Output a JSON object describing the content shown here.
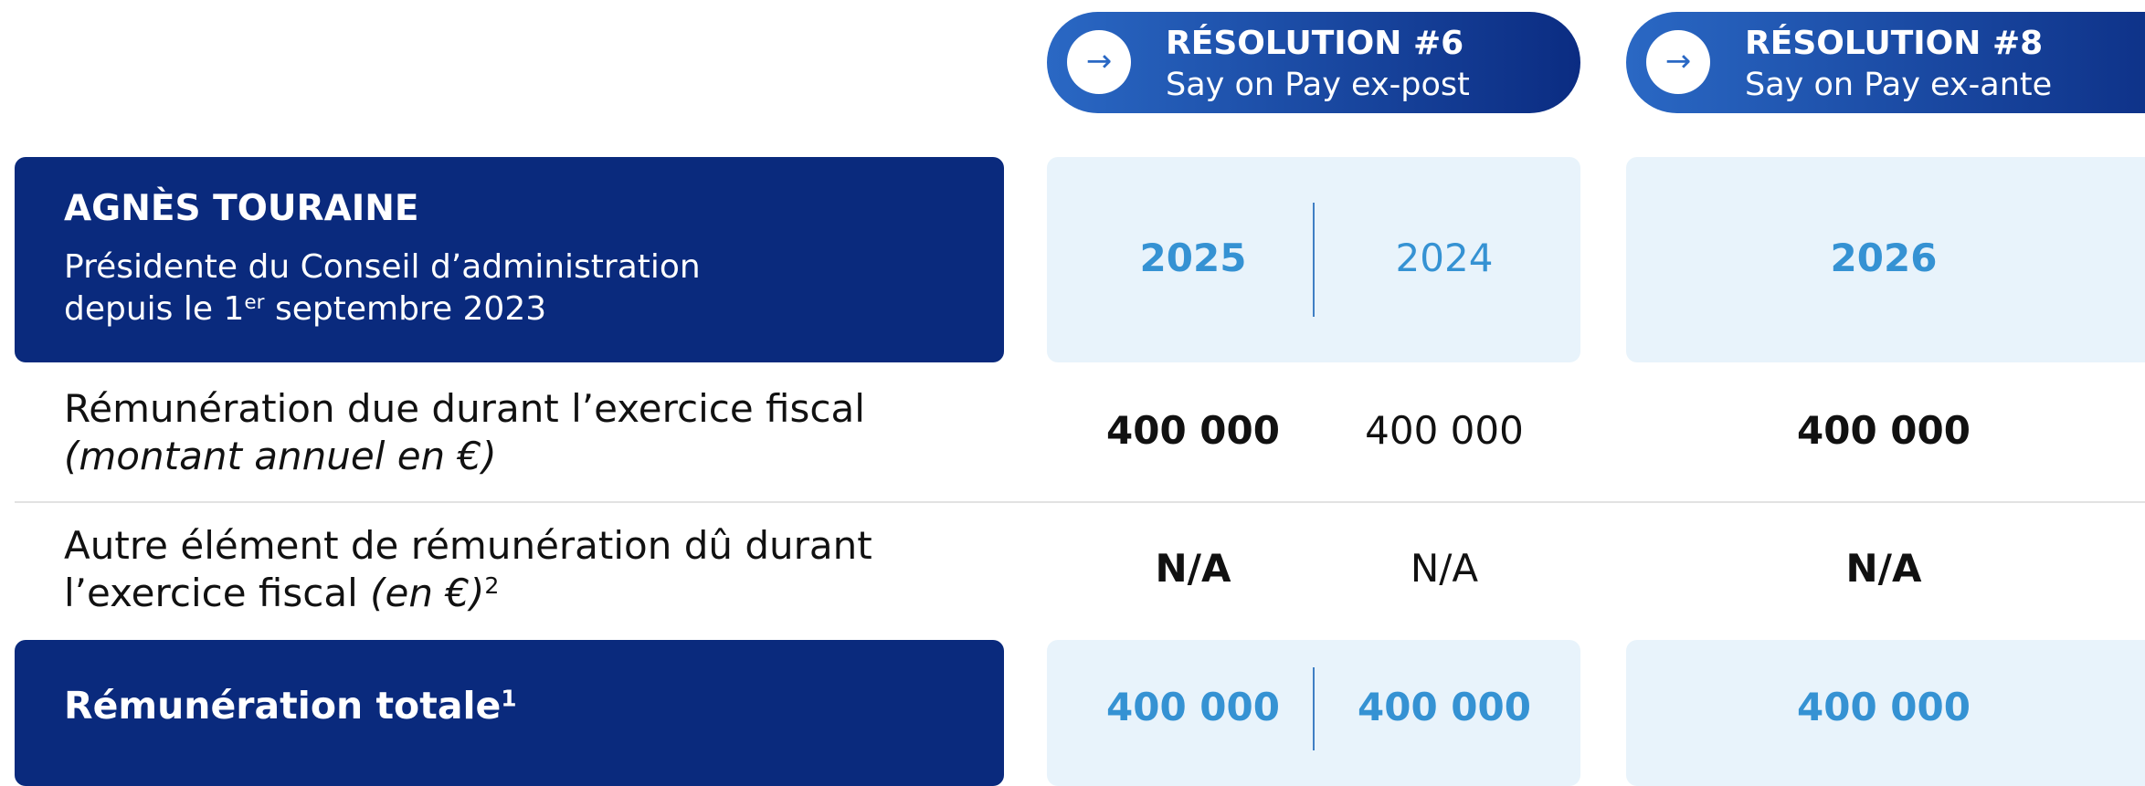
{
  "header": {
    "resolutions": [
      {
        "title": "RÉSOLUTION #6",
        "subtitle": "Say on Pay ex-post",
        "arrow": "→"
      },
      {
        "title": "RÉSOLUTION #8",
        "subtitle": "Say on Pay ex-ante",
        "arrow": "→"
      }
    ]
  },
  "person": {
    "name": "AGNÈS TOURAINE",
    "role": "Présidente du Conseil d’administration",
    "since_prefix": "depuis le 1",
    "since_sup": "er",
    "since_suffix": " septembre 2023"
  },
  "table": {
    "columns": [
      "2025",
      "2024",
      "2026"
    ],
    "rows": [
      {
        "label": "Rémunération due durant l’exercice fiscal",
        "label_note": "(montant annuel en €)",
        "values": [
          "400 000",
          "400 000",
          "400 000"
        ]
      },
      {
        "label": "Autre élément de rémunération dû durant",
        "label_line2": "l’exercice fiscal ",
        "label_note": "(en €)",
        "label_sup": "2",
        "values": [
          "N/A",
          "N/A",
          "N/A"
        ]
      }
    ],
    "total": {
      "label": "Rémunération totale",
      "label_sup": "1",
      "values": [
        "400 000",
        "400 000",
        "400 000"
      ]
    }
  }
}
